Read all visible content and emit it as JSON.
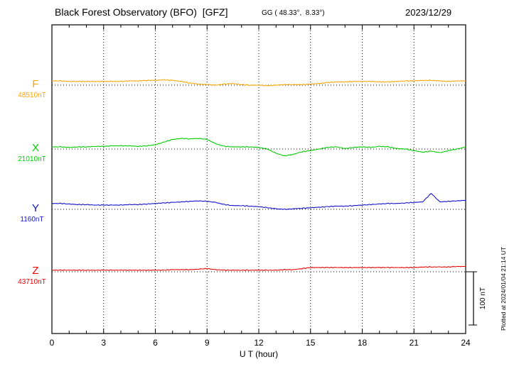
{
  "header": {
    "title": "Black Forest Observatory (BFO)  [GFZ]",
    "coords": "GG ( 48.33°,  8.33°)",
    "date": "2023/12/29"
  },
  "plotted_note": "Plotted at 2024/01/04 21:14 UT",
  "chart_data": {
    "type": "line",
    "title": "Black Forest Observatory (BFO) magnetogram",
    "xlabel": "U T (hour)",
    "x_range": [
      0,
      24
    ],
    "x_major_ticks": [
      0,
      3,
      6,
      9,
      12,
      15,
      18,
      21,
      24
    ],
    "x_minor_step": 1,
    "grid_hours": [
      3,
      6,
      9,
      12,
      15,
      18,
      21
    ],
    "x_step_hours": 0.5,
    "grid_on": true,
    "scale_bar": {
      "label": "100 nT",
      "nT": 100
    },
    "series": [
      {
        "name": "F",
        "label": "F",
        "baseline_label": "48510nT",
        "baseline_nT": 48510,
        "color": "#FFA500",
        "offsets_nT": [
          8,
          8,
          7,
          7,
          7,
          7,
          7,
          7,
          7,
          8,
          8,
          9,
          9,
          10,
          9,
          7,
          4,
          2,
          1,
          0,
          2,
          3,
          1,
          0,
          0,
          -1,
          0,
          1,
          1,
          1,
          2,
          3,
          5,
          6,
          6,
          7,
          7,
          7,
          6,
          6,
          7,
          8,
          8,
          9,
          9,
          8,
          7,
          8,
          8
        ]
      },
      {
        "name": "X",
        "label": "X",
        "baseline_label": "21010nT",
        "baseline_nT": 21010,
        "color": "#00CC00",
        "offsets_nT": [
          4,
          4,
          3,
          4,
          4,
          5,
          5,
          6,
          6,
          6,
          5,
          6,
          8,
          13,
          18,
          20,
          19,
          20,
          18,
          10,
          5,
          4,
          4,
          4,
          3,
          0,
          -8,
          -13,
          -10,
          -5,
          -3,
          0,
          3,
          4,
          1,
          3,
          4,
          3,
          5,
          4,
          1,
          0,
          -3,
          -6,
          -4,
          -7,
          -3,
          0,
          4
        ]
      },
      {
        "name": "Y",
        "label": "Y",
        "baseline_label": "1160nT",
        "baseline_nT": 1160,
        "color": "#1111CC",
        "offsets_nT": [
          11,
          11,
          10,
          9,
          9,
          8,
          8,
          8,
          8,
          9,
          9,
          10,
          11,
          12,
          13,
          14,
          15,
          16,
          15,
          13,
          9,
          7,
          7,
          6,
          5,
          3,
          1,
          0,
          1,
          2,
          3,
          4,
          5,
          6,
          6,
          7,
          8,
          9,
          10,
          11,
          11,
          12,
          13,
          14,
          30,
          14,
          15,
          16,
          17
        ]
      },
      {
        "name": "Z",
        "label": "Z",
        "baseline_label": "43710nT",
        "baseline_nT": 43710,
        "color": "#EE0000",
        "offsets_nT": [
          3,
          3,
          3,
          3,
          3,
          3,
          3,
          3,
          3,
          3,
          3,
          3,
          3,
          3,
          4,
          4,
          4,
          5,
          6,
          4,
          3,
          3,
          3,
          3,
          3,
          3,
          3,
          4,
          4,
          6,
          8,
          8,
          8,
          8,
          8,
          8,
          8,
          8,
          8,
          8,
          8,
          8,
          8,
          9,
          9,
          9,
          9,
          10,
          10
        ]
      }
    ]
  }
}
